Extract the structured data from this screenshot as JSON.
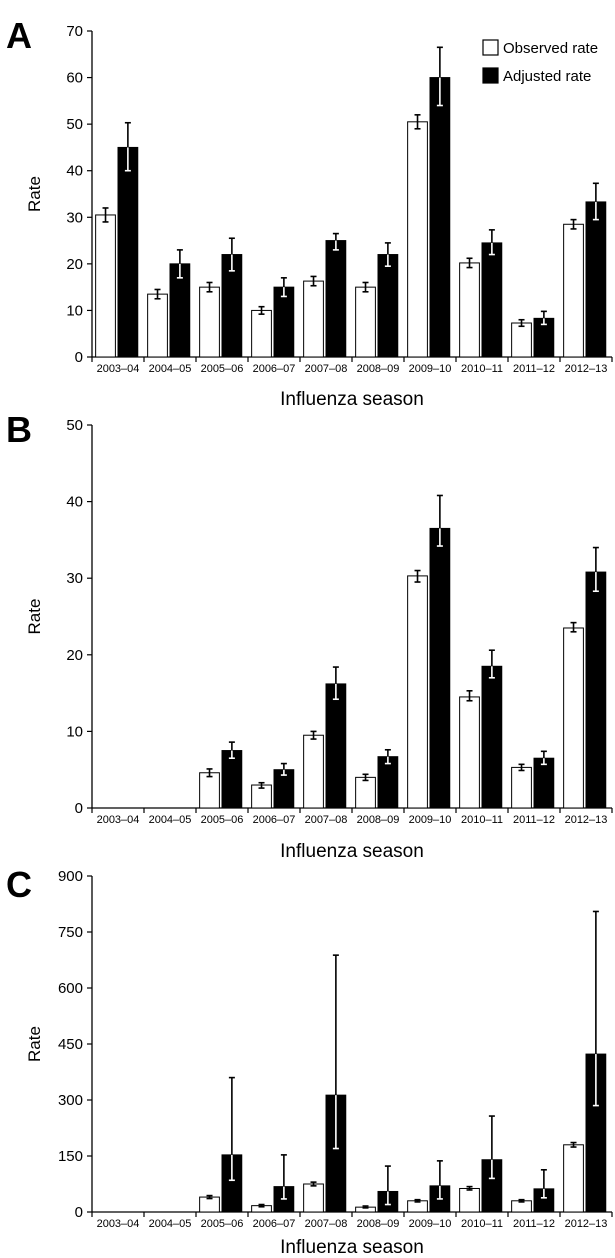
{
  "figure": {
    "legend": {
      "observed_label": "Observed rate",
      "adjusted_label": "Adjusted rate"
    },
    "colors": {
      "observed_fill": "#ffffff",
      "adjusted_fill": "#000000",
      "axis": "#000000",
      "error_bar_on_white": "#000000",
      "error_bar_on_black": "#ffffff"
    }
  },
  "chart_data": [
    {
      "type": "bar",
      "panel_label": "A",
      "xlabel": "Influenza season",
      "ylabel": "Rate",
      "ylim": [
        0,
        70
      ],
      "yticks": [
        0,
        10,
        20,
        30,
        40,
        50,
        60,
        70
      ],
      "grid": false,
      "legend_position": "top-right",
      "categories": [
        "2003–04",
        "2004–05",
        "2005–06",
        "2006–07",
        "2007–08",
        "2008–09",
        "2009–10",
        "2010–11",
        "2011–12",
        "2012–13"
      ],
      "series": [
        {
          "name": "Observed rate",
          "values": [
            30.5,
            13.5,
            15,
            10,
            16.3,
            15,
            50.5,
            20.2,
            7.3,
            28.5
          ],
          "err_low": [
            29,
            12.5,
            14,
            9.2,
            15.3,
            14,
            49,
            19.2,
            6.6,
            27.5
          ],
          "err_high": [
            32,
            14.5,
            16,
            10.8,
            17.3,
            16,
            52,
            21.2,
            8,
            29.5
          ]
        },
        {
          "name": "Adjusted rate",
          "values": [
            45,
            20,
            22,
            15,
            25,
            22,
            60,
            24.5,
            8.3,
            33.3
          ],
          "err_low": [
            40,
            17,
            18.5,
            13,
            23,
            19.5,
            54,
            22,
            7,
            29.5
          ],
          "err_high": [
            50.3,
            23,
            25.5,
            17,
            26.5,
            24.5,
            66.5,
            27.3,
            9.8,
            37.3
          ]
        }
      ]
    },
    {
      "type": "bar",
      "panel_label": "B",
      "xlabel": "Influenza season",
      "ylabel": "Rate",
      "ylim": [
        0,
        50
      ],
      "yticks": [
        0,
        10,
        20,
        30,
        40,
        50
      ],
      "grid": false,
      "categories": [
        "2003–04",
        "2004–05",
        "2005–06",
        "2006–07",
        "2007–08",
        "2008–09",
        "2009–10",
        "2010–11",
        "2011–12",
        "2012–13"
      ],
      "series": [
        {
          "name": "Observed rate",
          "values": [
            0,
            0,
            4.6,
            3,
            9.5,
            4,
            30.3,
            14.5,
            5.3,
            23.5
          ],
          "err_low": [
            0,
            0,
            4.1,
            2.6,
            9,
            3.6,
            29.5,
            14,
            4.9,
            23
          ],
          "err_high": [
            0,
            0,
            5.1,
            3.3,
            10,
            4.4,
            31,
            15.3,
            5.7,
            24.2
          ]
        },
        {
          "name": "Adjusted rate",
          "values": [
            0,
            0,
            7.5,
            5,
            16.2,
            6.7,
            36.5,
            18.5,
            6.5,
            30.8
          ],
          "err_low": [
            0,
            0,
            6.5,
            4.3,
            14.2,
            5.8,
            34.2,
            17,
            5.7,
            28.3
          ],
          "err_high": [
            0,
            0,
            8.6,
            5.8,
            18.4,
            7.6,
            40.8,
            20.6,
            7.4,
            34
          ]
        }
      ]
    },
    {
      "type": "bar",
      "panel_label": "C",
      "xlabel": "Influenza season",
      "ylabel": "Rate",
      "ylim": [
        0,
        900
      ],
      "yticks": [
        0,
        150,
        300,
        450,
        600,
        750,
        900
      ],
      "grid": false,
      "categories": [
        "2003–04",
        "2004–05",
        "2005–06",
        "2006–07",
        "2007–08",
        "2008–09",
        "2009–10",
        "2010–11",
        "2011–12",
        "2012–13"
      ],
      "series": [
        {
          "name": "Observed rate",
          "values": [
            0,
            0,
            40,
            17,
            75,
            13,
            30,
            63,
            30,
            180
          ],
          "err_low": [
            0,
            0,
            36,
            14,
            70,
            11,
            27,
            59,
            27,
            174
          ],
          "err_high": [
            0,
            0,
            44,
            20,
            80,
            16,
            33,
            68,
            33,
            186
          ]
        },
        {
          "name": "Adjusted rate",
          "values": [
            0,
            0,
            153,
            68,
            313,
            55,
            70,
            140,
            62,
            423
          ],
          "err_low": [
            0,
            0,
            85,
            35,
            170,
            20,
            35,
            90,
            38,
            285
          ],
          "err_high": [
            0,
            0,
            360,
            153,
            688,
            123,
            137,
            257,
            113,
            805
          ]
        }
      ]
    }
  ]
}
